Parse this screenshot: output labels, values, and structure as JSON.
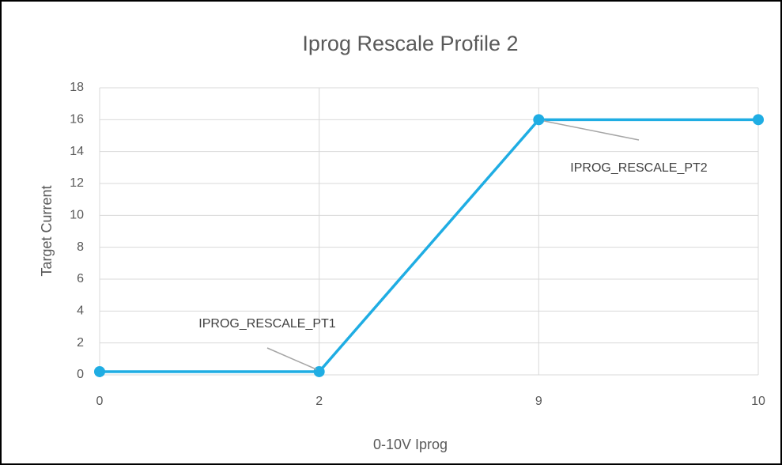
{
  "chart_data": {
    "type": "line",
    "title": "Iprog Rescale Profile 2",
    "x_label": "0-10V Iprog",
    "y_label": "Target Current",
    "categories": [
      "0",
      "2",
      "9",
      "10"
    ],
    "values": [
      0.2,
      0.2,
      16,
      16
    ],
    "color": "#1fade3",
    "ylim": [
      0,
      18
    ],
    "yticks": [
      0,
      2,
      4,
      6,
      8,
      10,
      12,
      14,
      16,
      18
    ],
    "grid": true,
    "annotations": [
      "IPROG_RESCALE_PT1",
      "IPROG_RESCALE_PT2"
    ]
  }
}
